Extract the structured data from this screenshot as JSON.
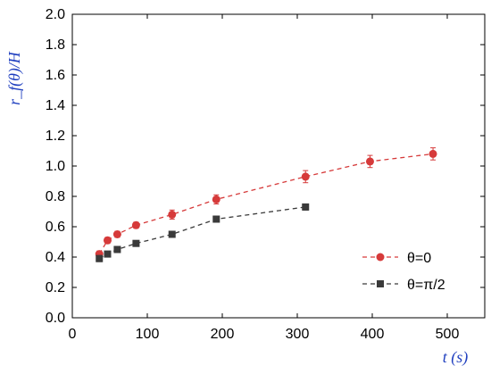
{
  "chart_data": {
    "type": "scatter",
    "xlabel": "t (s)",
    "ylabel": "r_f(θ)/H",
    "xlim": [
      0,
      550
    ],
    "ylim": [
      0,
      2.0
    ],
    "xticks": [
      0,
      100,
      200,
      300,
      400,
      500
    ],
    "yticks": [
      0.0,
      0.2,
      0.4,
      0.6,
      0.8,
      1.0,
      1.2,
      1.4,
      1.6,
      1.8,
      2.0
    ],
    "xtick_labels": [
      "0",
      "100",
      "200",
      "300",
      "400",
      "500"
    ],
    "ytick_labels": [
      "0.0",
      "0.2",
      "0.4",
      "0.6",
      "0.8",
      "1.0",
      "1.2",
      "1.4",
      "1.6",
      "1.8",
      "2.0"
    ],
    "grid": false,
    "legend_position": "bottom-right",
    "series": [
      {
        "name": "θ=0",
        "color": "#d63a3a",
        "marker": "circle",
        "line": "dashed",
        "x": [
          36,
          47,
          60,
          85,
          133,
          192,
          311,
          397,
          481
        ],
        "y": [
          0.42,
          0.51,
          0.55,
          0.61,
          0.68,
          0.78,
          0.93,
          1.03,
          1.08
        ],
        "err": [
          0.02,
          0.02,
          0.02,
          0.02,
          0.03,
          0.03,
          0.04,
          0.04,
          0.04
        ]
      },
      {
        "name": "θ=π/2",
        "color": "#3a3a3a",
        "marker": "square",
        "line": "dashed",
        "x": [
          36,
          47,
          60,
          85,
          133,
          192,
          311
        ],
        "y": [
          0.39,
          0.42,
          0.45,
          0.49,
          0.55,
          0.65,
          0.73
        ],
        "err": [
          0.02,
          0.01,
          0.01,
          0.01,
          0.02,
          0.02,
          0.02
        ]
      }
    ]
  }
}
